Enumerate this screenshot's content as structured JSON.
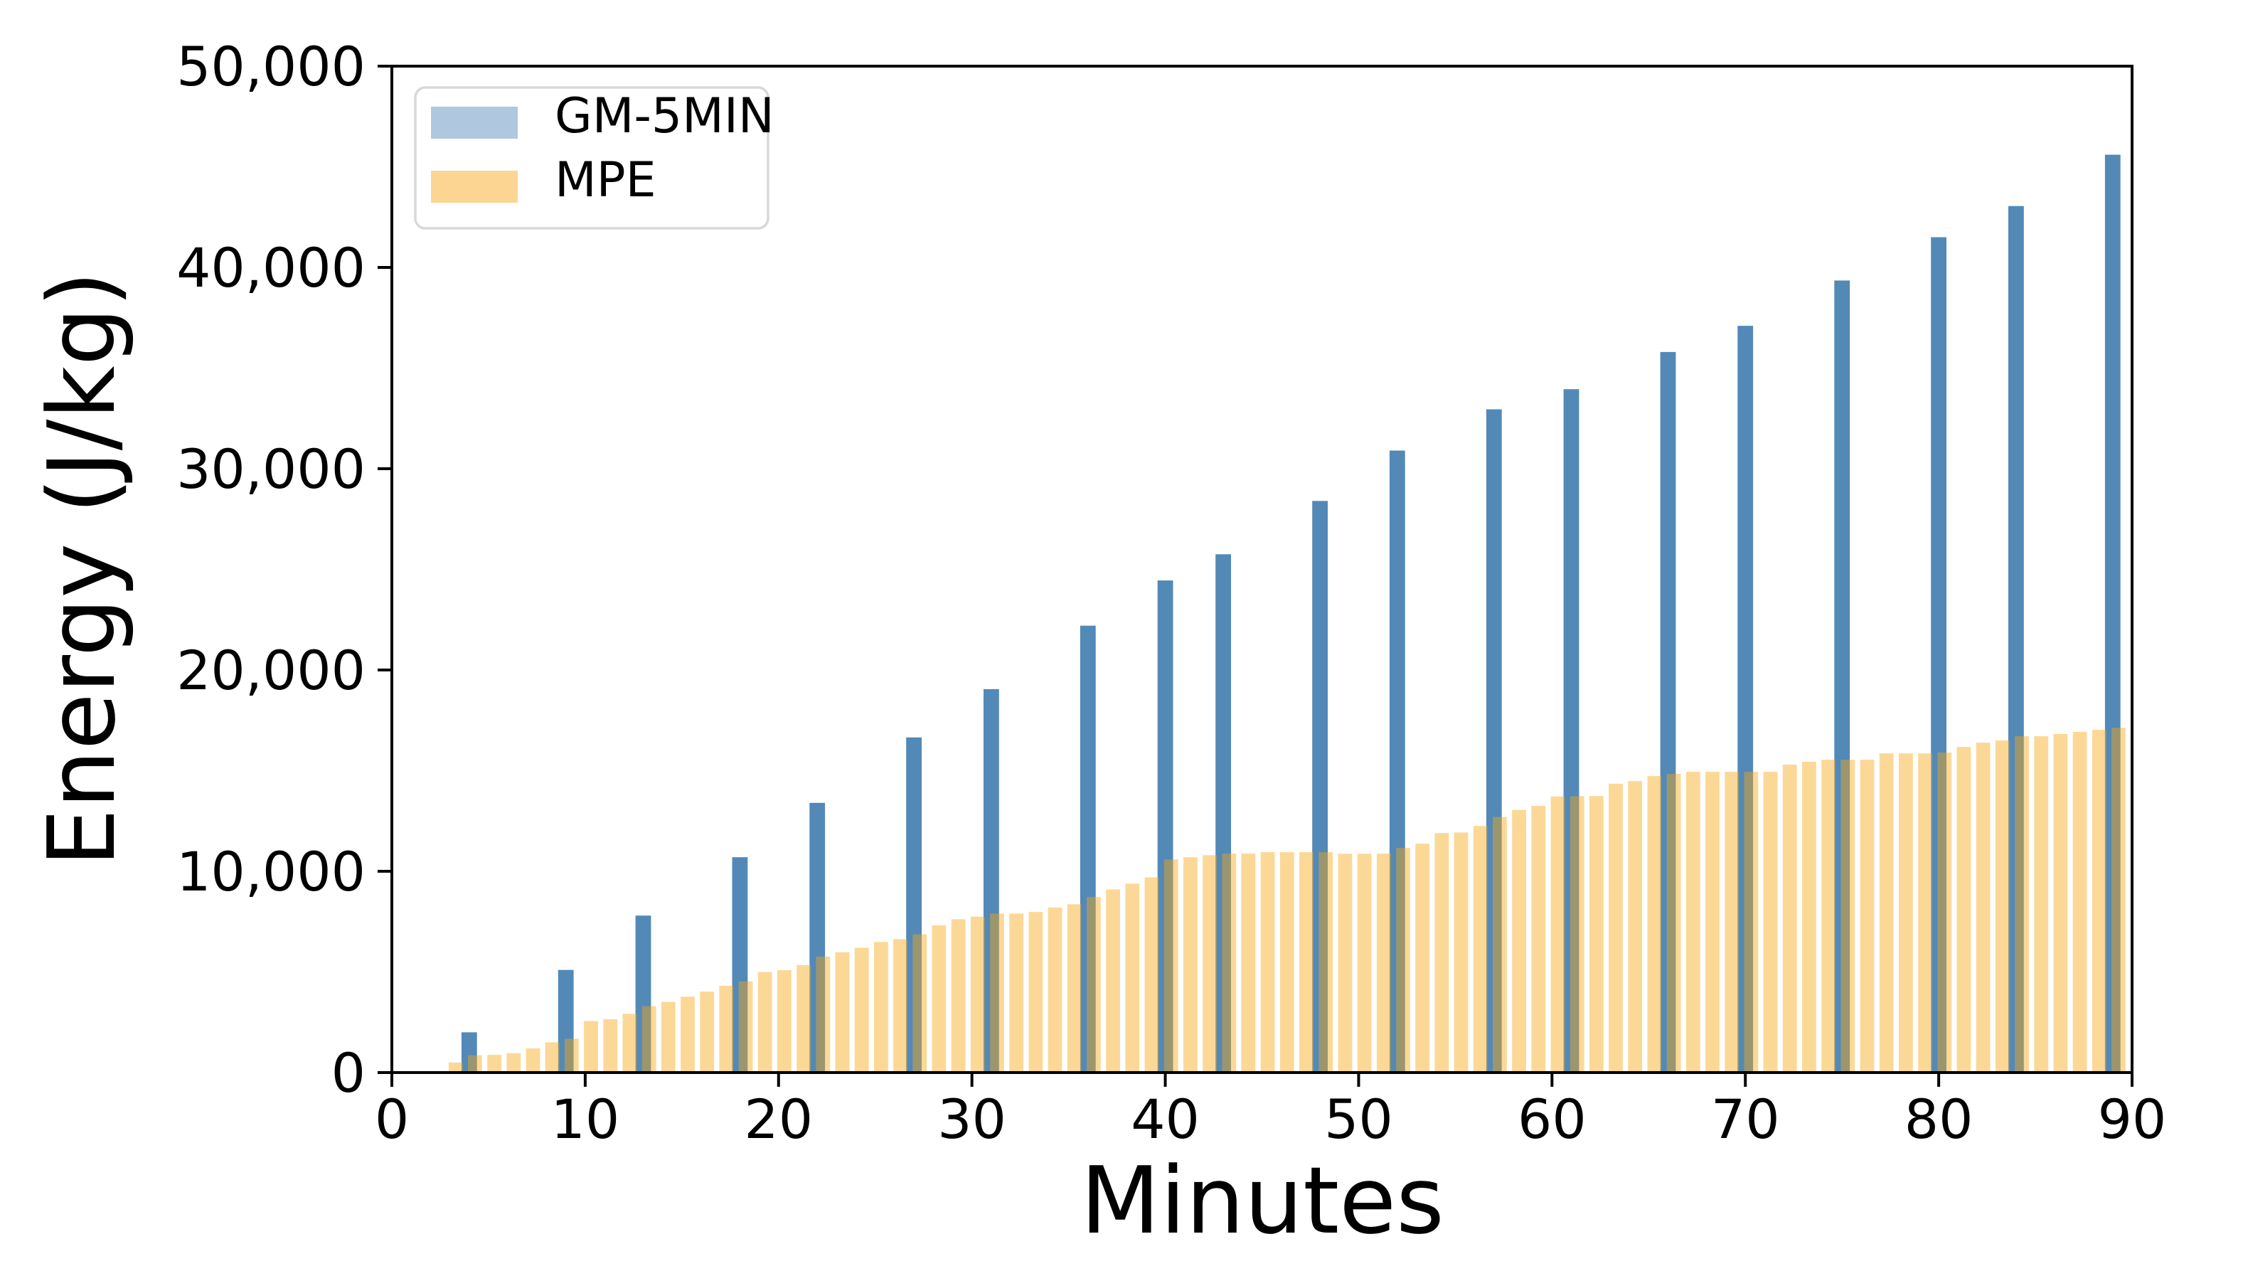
{
  "figure": {
    "background": "#ffffff",
    "x_tick_labels": [
      "0",
      "10",
      "20",
      "30",
      "40",
      "50",
      "60",
      "70",
      "80",
      "90"
    ],
    "y_tick_labels": [
      "0",
      "10,000",
      "20,000",
      "30,000",
      "40,000",
      "50,000"
    ]
  },
  "legend": {
    "position": "upper left",
    "items": [
      {
        "label": "GM-5MIN",
        "color": "#AFC8E0"
      },
      {
        "label": "MPE",
        "color": "#FCD592"
      }
    ]
  },
  "chart_data": {
    "type": "bar",
    "title": "",
    "xlabel": "Minutes",
    "ylabel": "Energy (J/kg)",
    "xlim": [
      0,
      90
    ],
    "ylim": [
      0,
      50000
    ],
    "x_ticks": [
      0,
      10,
      20,
      30,
      40,
      50,
      60,
      70,
      80,
      90
    ],
    "y_ticks": [
      0,
      10000,
      20000,
      30000,
      40000,
      50000
    ],
    "grid": false,
    "legend_position": "upper left",
    "series": [
      {
        "name": "GM-5MIN",
        "color": "#5289B7",
        "bar_width_minutes": 0.8,
        "x_offset_minutes": 0,
        "x": [
          4,
          9,
          13,
          18,
          22,
          27,
          31,
          36,
          40,
          43,
          48,
          52,
          57,
          61,
          66,
          70,
          75,
          80,
          84,
          89
        ],
        "values": [
          2000,
          5100,
          7800,
          10700,
          13400,
          16650,
          19050,
          22200,
          24450,
          25750,
          28400,
          30900,
          32950,
          33950,
          35800,
          37100,
          39350,
          41500,
          43050,
          45600
        ]
      },
      {
        "name": "MPE",
        "color": "rgba(248,167,18,0.44)",
        "bar_width_minutes": 0.73,
        "x_offset_minutes": 0.3,
        "x": [
          3,
          4,
          5,
          6,
          7,
          8,
          9,
          10,
          11,
          12,
          13,
          14,
          15,
          16,
          17,
          18,
          19,
          20,
          21,
          22,
          23,
          24,
          25,
          26,
          27,
          28,
          29,
          30,
          31,
          32,
          33,
          34,
          35,
          36,
          37,
          38,
          39,
          40,
          41,
          42,
          43,
          44,
          45,
          46,
          47,
          48,
          49,
          50,
          51,
          52,
          53,
          54,
          55,
          56,
          57,
          58,
          59,
          60,
          61,
          62,
          63,
          64,
          65,
          66,
          67,
          68,
          69,
          70,
          71,
          72,
          73,
          74,
          75,
          76,
          77,
          78,
          79,
          80,
          81,
          82,
          83,
          84,
          85,
          86,
          87,
          88,
          89
        ],
        "values": [
          500,
          860,
          880,
          960,
          1200,
          1500,
          1680,
          2560,
          2650,
          2920,
          3300,
          3510,
          3770,
          4020,
          4310,
          4530,
          5000,
          5090,
          5340,
          5760,
          5980,
          6200,
          6490,
          6630,
          6870,
          7310,
          7620,
          7750,
          7900,
          7900,
          7980,
          8200,
          8360,
          8720,
          9100,
          9390,
          9700,
          10590,
          10700,
          10800,
          10880,
          10880,
          10950,
          10950,
          10950,
          10950,
          10870,
          10870,
          10880,
          11160,
          11370,
          11900,
          11930,
          12250,
          12700,
          13050,
          13250,
          13720,
          13730,
          13740,
          14350,
          14480,
          14730,
          14840,
          14940,
          14940,
          14940,
          14940,
          14940,
          15300,
          15440,
          15540,
          15540,
          15540,
          15860,
          15860,
          15860,
          15900,
          16180,
          16390,
          16500,
          16710,
          16710,
          16820,
          16930,
          17030,
          17130
        ]
      }
    ]
  }
}
